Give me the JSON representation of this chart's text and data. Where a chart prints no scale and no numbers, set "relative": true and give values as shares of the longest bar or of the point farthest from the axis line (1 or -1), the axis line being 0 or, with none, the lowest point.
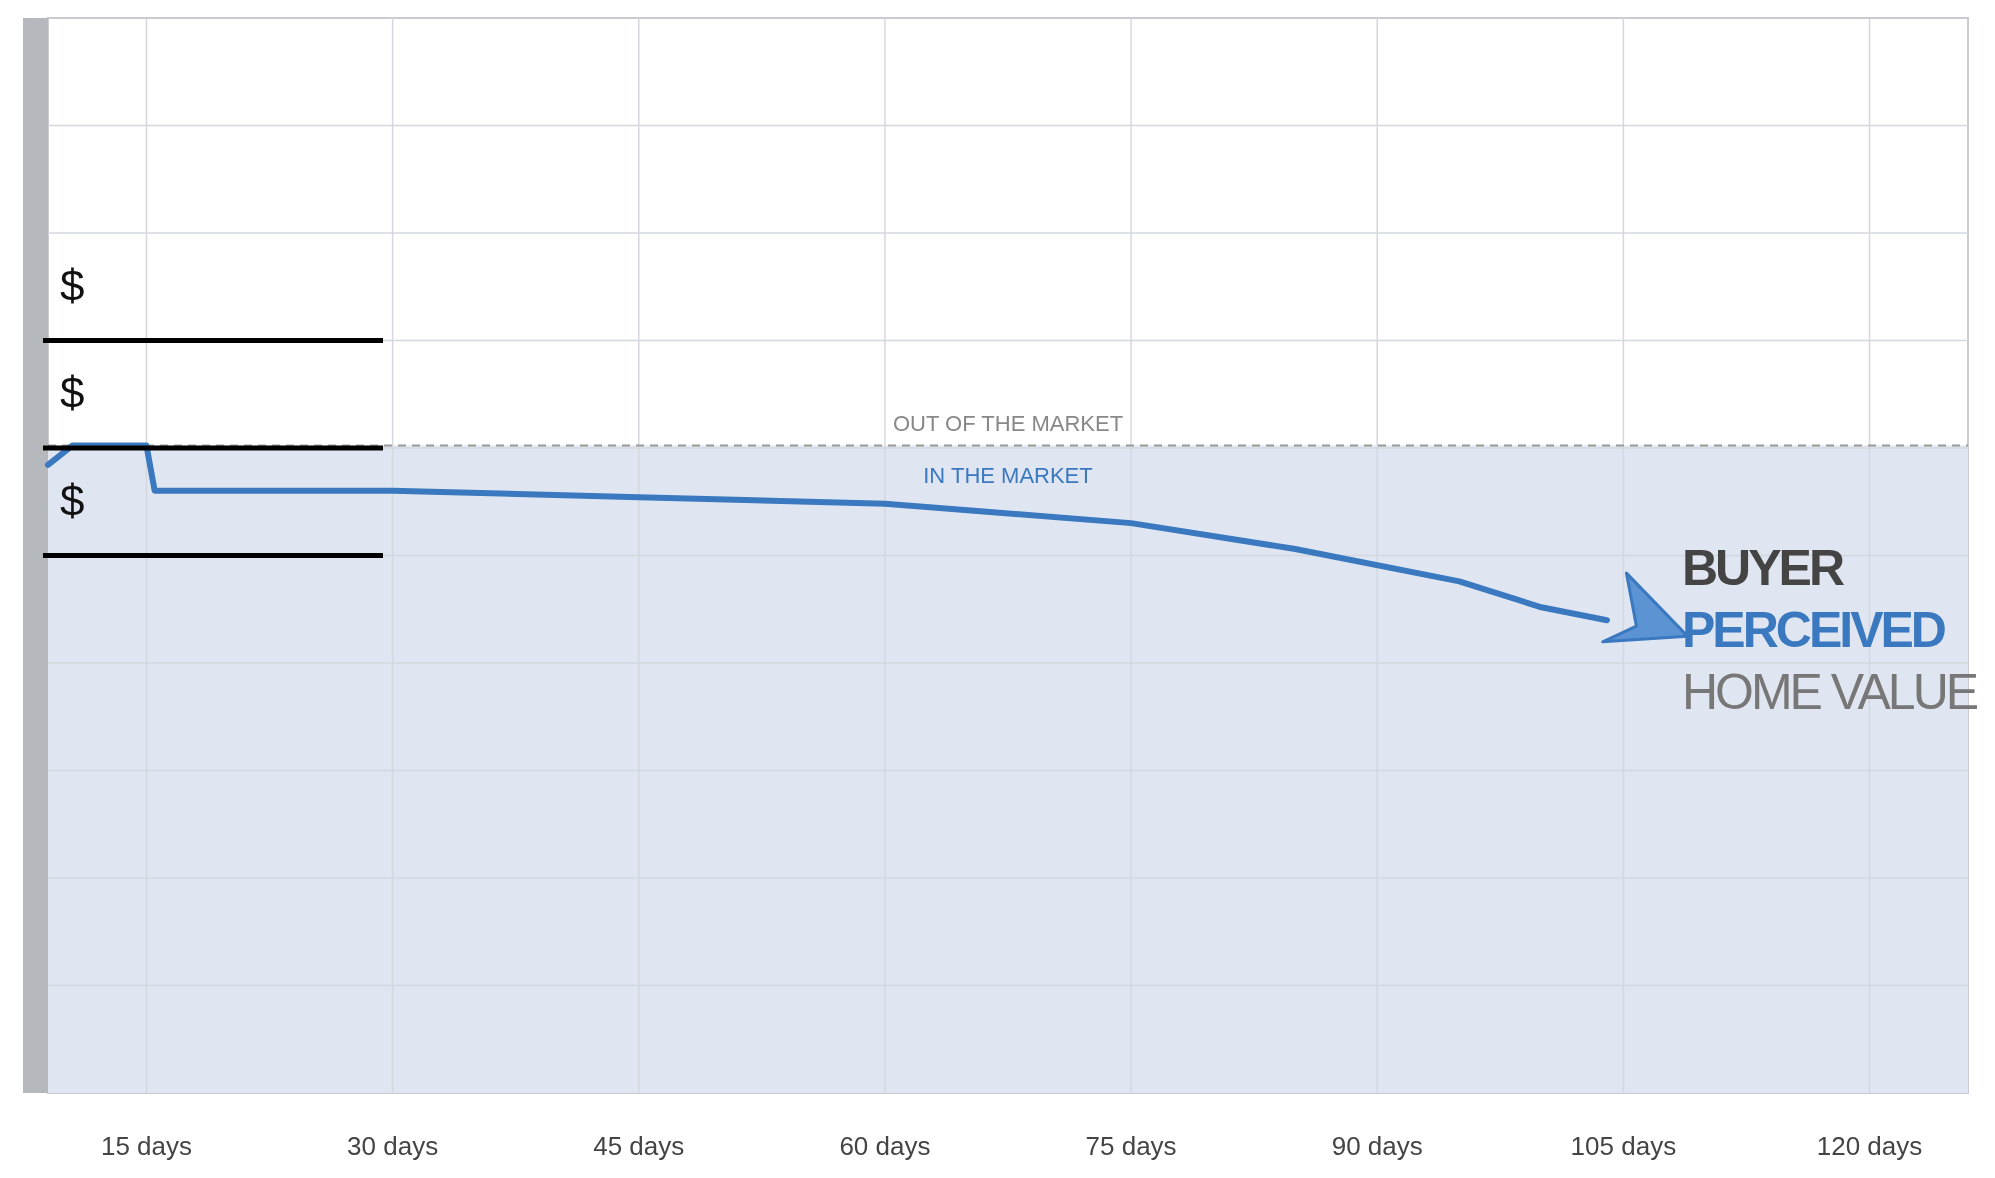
{
  "chart_data": {
    "type": "line",
    "relative": true,
    "x": [
      9,
      10.5,
      15,
      15.5,
      17,
      30,
      45,
      60,
      75,
      85,
      95,
      100,
      104
    ],
    "xlim": [
      9,
      126
    ],
    "xticks": [
      {
        "value": 15,
        "label": "15 days"
      },
      {
        "value": 30,
        "label": "30 days"
      },
      {
        "value": 45,
        "label": "45 days"
      },
      {
        "value": 60,
        "label": "60 days"
      },
      {
        "value": 75,
        "label": "75 days"
      },
      {
        "value": 90,
        "label": "90 days"
      },
      {
        "value": 105,
        "label": "105 days"
      },
      {
        "value": 120,
        "label": "120 days"
      }
    ],
    "series": [
      {
        "color": "#3a78c0",
        "values": [
          0.97,
          1,
          1,
          0.93,
          0.93,
          0.93,
          0.92,
          0.91,
          0.88,
          0.84,
          0.79,
          0.75,
          0.73
        ]
      }
    ],
    "ref_lines": [
      {
        "axis": "y",
        "value": 1,
        "label": "OUT OF THE MARKET",
        "color": "#999999",
        "line_style": "dashed"
      }
    ],
    "bands": [
      {
        "axis": "y",
        "from": 0,
        "to": 1,
        "label": "IN THE MARKET",
        "color": "#dfe6f1"
      }
    ],
    "annotations": [
      "$",
      "$",
      "$",
      "BUYER",
      "PERCEIVED",
      "HOME VALUE"
    ],
    "grid": true,
    "tick_labels": "x",
    "marker": "none",
    "line_style": "solid"
  }
}
